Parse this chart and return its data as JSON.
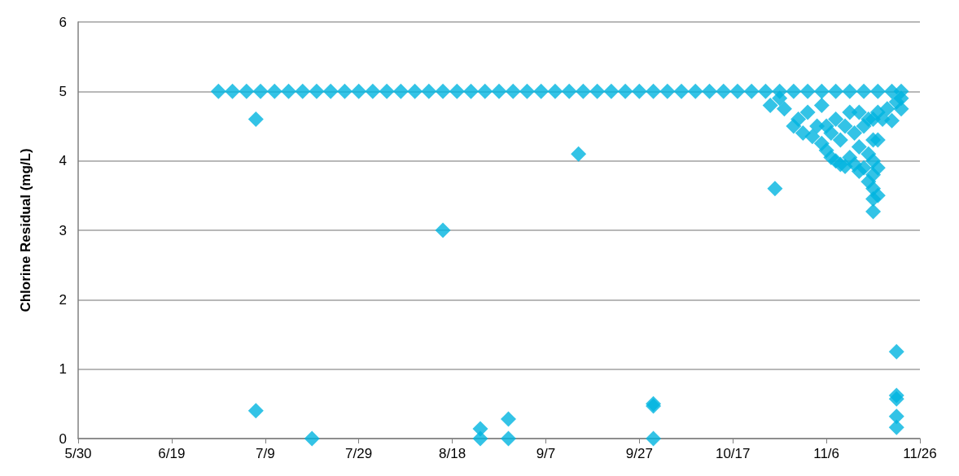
{
  "chart_data": {
    "type": "scatter",
    "ylabel": "Chlorine Residual (mg/L)",
    "x": [
      "--06-29",
      "--07-02",
      "--07-05",
      "--07-08",
      "--07-11",
      "--07-14",
      "--07-17",
      "--07-20",
      "--07-23",
      "--07-26",
      "--07-29",
      "--08-01",
      "--08-04",
      "--08-07",
      "--08-10",
      "--08-13",
      "--08-16",
      "--08-19",
      "--08-22",
      "--08-25",
      "--08-28",
      "--08-31",
      "--09-03",
      "--09-06",
      "--09-09",
      "--09-12",
      "--09-15",
      "--09-18",
      "--09-21",
      "--09-24",
      "--09-27",
      "--09-30",
      "--10-03",
      "--10-06",
      "--10-09",
      "--10-12",
      "--10-15",
      "--10-18",
      "--10-21",
      "--10-24",
      "--10-27",
      "--10-30",
      "--11-02",
      "--11-05",
      "--11-08",
      "--11-11",
      "--11-14",
      "--11-17",
      "--11-20",
      "--11-22",
      "--07-07",
      "--07-07",
      "--07-19",
      "--08-16",
      "--08-24",
      "--08-24",
      "--08-30",
      "--08-30",
      "--09-14",
      "--09-30",
      "--09-30",
      "--09-30",
      "--10-26",
      "--11-21",
      "--11-21",
      "--11-21",
      "--11-21",
      "--11-21",
      "--10-25",
      "--10-27",
      "--10-28",
      "--10-30",
      "--10-31",
      "--11-01",
      "--11-02",
      "--11-03",
      "--11-04",
      "--11-05",
      "--11-05",
      "--11-06",
      "--11-06",
      "--11-07",
      "--11-07",
      "--11-08",
      "--11-08",
      "--11-09",
      "--11-09",
      "--11-10",
      "--11-10",
      "--11-11",
      "--11-11",
      "--11-12",
      "--11-12",
      "--11-13",
      "--11-13",
      "--11-13",
      "--11-14",
      "--11-14",
      "--11-15",
      "--11-15",
      "--11-15",
      "--11-16",
      "--11-16",
      "--11-16",
      "--11-16",
      "--11-16",
      "--11-16",
      "--11-16",
      "--11-17",
      "--11-17",
      "--11-17",
      "--11-17",
      "--11-18",
      "--11-19",
      "--11-20",
      "--11-21",
      "--11-22",
      "--11-22"
    ],
    "values": [
      5,
      5,
      5,
      5,
      5,
      5,
      5,
      5,
      5,
      5,
      5,
      5,
      5,
      5,
      5,
      5,
      5,
      5,
      5,
      5,
      5,
      5,
      5,
      5,
      5,
      5,
      5,
      5,
      5,
      5,
      5,
      5,
      5,
      5,
      5,
      5,
      5,
      5,
      5,
      5,
      5,
      5,
      5,
      5,
      5,
      5,
      5,
      5,
      5,
      5,
      4.6,
      0.4,
      0,
      3,
      0.14,
      0,
      0.28,
      0,
      4.1,
      0.5,
      0.47,
      0,
      3.6,
      1.25,
      0.62,
      0.57,
      0.32,
      0.16,
      4.8,
      4.9,
      4.75,
      4.5,
      4.6,
      4.4,
      4.7,
      4.35,
      4.5,
      4.25,
      4.8,
      4.15,
      4.5,
      4.05,
      4.4,
      4,
      4.6,
      3.95,
      4.3,
      3.92,
      4.5,
      4.05,
      4.7,
      3.95,
      4.4,
      3.85,
      4.2,
      4.7,
      3.9,
      4.5,
      3.7,
      4.1,
      4.6,
      3.27,
      3.45,
      3.6,
      3.8,
      4,
      4.3,
      4.6,
      3.5,
      3.9,
      4.3,
      4.7,
      4.6,
      4.75,
      4.58,
      4.85,
      4.9,
      4.75
    ],
    "color": "#00b4e0",
    "marker": "diamond",
    "grid": "y",
    "xlim": [
      "--05-30",
      "--11-26"
    ],
    "xticks": [
      {
        "value": "--05-30",
        "label": "5/30"
      },
      {
        "value": "--06-19",
        "label": "6/19"
      },
      {
        "value": "--07-09",
        "label": "7/9"
      },
      {
        "value": "--07-29",
        "label": "7/29"
      },
      {
        "value": "--08-18",
        "label": "8/18"
      },
      {
        "value": "--09-07",
        "label": "9/7"
      },
      {
        "value": "--09-27",
        "label": "9/27"
      },
      {
        "value": "--10-17",
        "label": "10/17"
      },
      {
        "value": "--11-06",
        "label": "11/6"
      },
      {
        "value": "--11-26",
        "label": "11/26"
      }
    ],
    "ylim": [
      0,
      6
    ],
    "yticks": [
      0,
      1,
      2,
      3,
      4,
      5,
      6
    ]
  }
}
